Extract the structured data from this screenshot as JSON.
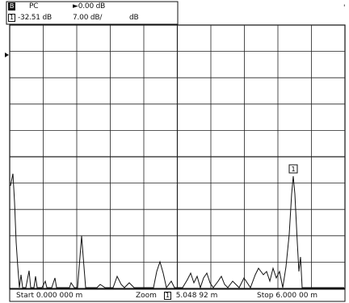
{
  "header": {
    "trace_mode": "B",
    "detector": "PC",
    "ref_level": "0.00 dB",
    "marker_index": "1",
    "marker_value": "-32.51 dB",
    "scale": "7.00 dB/",
    "unit": "dB",
    "top_right_mark": "'"
  },
  "footer": {
    "start_label": "Start",
    "start_value": "0.000 000 m",
    "zoom_label": "Zoom",
    "zoom_marker": "1",
    "zoom_value": "5.048 92 m",
    "stop_label": "Stop",
    "stop_value": "6.000 00 m"
  },
  "plot": {
    "marker_label": "1",
    "grid_cols": 10,
    "grid_rows": 10,
    "colors": {
      "trace": "#111111",
      "grid": "#222222",
      "background": "#ffffff"
    }
  }
}
